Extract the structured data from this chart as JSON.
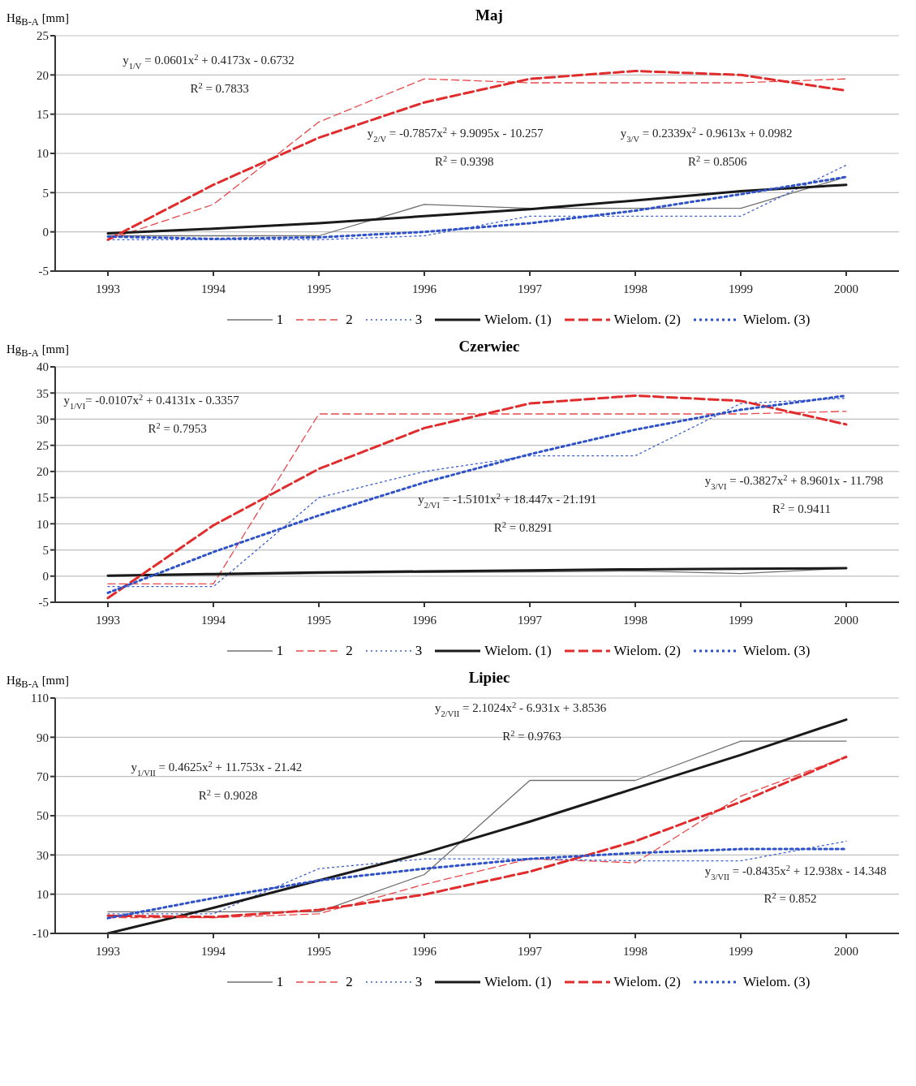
{
  "chart_data": [
    {
      "type": "line",
      "title": "Maj",
      "ylabel": "Hg$_{B-A}$ [mm]",
      "categories": [
        "1993",
        "1994",
        "1995",
        "1996",
        "1997",
        "1998",
        "1999",
        "2000"
      ],
      "ylim": [
        -5,
        25
      ],
      "yticks": [
        -5,
        0,
        5,
        10,
        15,
        20,
        25
      ],
      "grid": "y",
      "legend": "bottom",
      "series": [
        {
          "name": "1",
          "color": "#707070",
          "line_style": "solid",
          "values": [
            -0.5,
            -0.5,
            -0.5,
            3.5,
            3,
            3,
            3,
            7
          ]
        },
        {
          "name": "2",
          "color": "#e8484a",
          "line_style": "dashed",
          "values": [
            -1,
            3.5,
            14,
            19.5,
            19,
            19,
            19,
            19.5
          ]
        },
        {
          "name": "3",
          "color": "#3a5fd0",
          "line_style": "dotted",
          "values": [
            -1,
            -1,
            -1,
            -0.5,
            2,
            2,
            2,
            8.5
          ]
        },
        {
          "name": "Wielom. (1)",
          "color": "#1a1a1a",
          "line_style": "solid",
          "values": [
            -0.2,
            0.4,
            1.1,
            2,
            2.9,
            4,
            5.2,
            6
          ]
        },
        {
          "name": "Wielom. (2)",
          "color": "#e02c2c",
          "line_style": "dashed",
          "values": [
            -1,
            6,
            12,
            16.5,
            19.5,
            20.5,
            20,
            18
          ]
        },
        {
          "name": "Wielom. (3)",
          "color": "#2f52c8",
          "line_style": "dotted",
          "values": [
            -0.6,
            -0.9,
            -0.7,
            0,
            1.1,
            2.7,
            4.8,
            7
          ]
        }
      ],
      "annotations": [
        "y$_{1/V}$ = 0.0601x$^{2}$ + 0.4173x - 0.6732",
        "R$^{2}$ = 0.7833",
        "y$_{2/V}$ = -0.7857x$^{2}$ + 9.9095x - 10.257",
        "R$^{2}$ = 0.9398",
        "y$_{3/V}$ = 0.2339x$^{2}$ - 0.9613x + 0.0982",
        "R$^{2}$ = 0.8506"
      ]
    },
    {
      "type": "line",
      "title": "Czerwiec",
      "ylabel": "Hg$_{B-A}$ [mm]",
      "categories": [
        "1993",
        "1994",
        "1995",
        "1996",
        "1997",
        "1998",
        "1999",
        "2000"
      ],
      "ylim": [
        -5,
        40
      ],
      "yticks": [
        -5,
        0,
        5,
        10,
        15,
        20,
        25,
        30,
        35,
        40
      ],
      "grid": "y",
      "legend": "bottom",
      "series": [
        {
          "name": "1",
          "color": "#707070",
          "line_style": "solid",
          "values": [
            0,
            0.2,
            0.5,
            0.7,
            0.8,
            1,
            0.5,
            1.5
          ]
        },
        {
          "name": "2",
          "color": "#e8484a",
          "line_style": "dashed",
          "values": [
            -1.5,
            -1.5,
            31,
            31,
            31,
            31,
            31,
            31.5
          ]
        },
        {
          "name": "3",
          "color": "#3a5fd0",
          "line_style": "dotted",
          "values": [
            -2,
            -2,
            15,
            20,
            23,
            23,
            33,
            34
          ]
        },
        {
          "name": "Wielom. (1)",
          "color": "#1a1a1a",
          "line_style": "solid",
          "values": [
            0.1,
            0.4,
            0.7,
            0.9,
            1.1,
            1.3,
            1.4,
            1.5
          ]
        },
        {
          "name": "Wielom. (2)",
          "color": "#e02c2c",
          "line_style": "dashed",
          "values": [
            -4.2,
            9.7,
            20.5,
            28.3,
            33,
            34.5,
            33.5,
            29
          ]
        },
        {
          "name": "Wielom. (3)",
          "color": "#2f52c8",
          "line_style": "dotted",
          "values": [
            -3.2,
            4.6,
            11.6,
            17.9,
            23.3,
            28,
            31.8,
            34.5
          ]
        }
      ],
      "annotations": [
        "y$_{1/VI}$= -0.0107x$^{2}$ + 0.4131x - 0.3357",
        "R$^{2}$ = 0.7953",
        "y$_{2/VI}$ = -1.5101x$^{2}$ + 18.447x - 21.191",
        "R$^{2}$ = 0.8291",
        "y$_{3/VI}$ = -0.3827x$^{2}$ + 8.9601x - 11.798",
        "R$^{2}$ = 0.9411"
      ]
    },
    {
      "type": "line",
      "title": "Lipiec",
      "ylabel": "Hg$_{B-A}$ [mm]",
      "categories": [
        "1993",
        "1994",
        "1995",
        "1996",
        "1997",
        "1998",
        "1999",
        "2000"
      ],
      "ylim": [
        -10,
        110
      ],
      "yticks": [
        -10,
        10,
        30,
        50,
        70,
        90,
        110
      ],
      "grid": "y",
      "legend": "bottom",
      "series": [
        {
          "name": "1",
          "color": "#707070",
          "line_style": "solid",
          "values": [
            1,
            1,
            1,
            20,
            68,
            68,
            88,
            88
          ]
        },
        {
          "name": "2",
          "color": "#e8484a",
          "line_style": "dashed",
          "values": [
            -2,
            -2,
            0,
            15,
            28,
            26,
            60,
            80
          ]
        },
        {
          "name": "3",
          "color": "#3a5fd0",
          "line_style": "dotted",
          "values": [
            0,
            0,
            23,
            28,
            28,
            27,
            27,
            37
          ]
        },
        {
          "name": "Wielom. (1)",
          "color": "#1a1a1a",
          "line_style": "solid",
          "values": [
            -10,
            3,
            17,
            31,
            47,
            64,
            81,
            99
          ]
        },
        {
          "name": "Wielom. (2)",
          "color": "#e02c2c",
          "line_style": "dashed",
          "values": [
            -1,
            -1.6,
            2,
            9.8,
            21.5,
            37,
            57,
            80
          ]
        },
        {
          "name": "Wielom. (3)",
          "color": "#2f52c8",
          "line_style": "dotted",
          "values": [
            -2.2,
            8,
            17,
            23,
            28,
            31,
            33,
            33
          ]
        }
      ],
      "annotations": [
        "y$_{1/VII}$ = 0.4625x$^{2}$ + 11.753x - 21.42",
        "R$^{2}$ = 0.9028",
        "y$_{2/VII}$ = 2.1024x$^{2}$ - 6.931x + 3.8536",
        "R$^{2}$ = 0.9763",
        "y$_{3/VII}$ = -0.8435x$^{2}$ + 12.938x - 14.348",
        "R$^{2}$ = 0.852"
      ]
    }
  ]
}
